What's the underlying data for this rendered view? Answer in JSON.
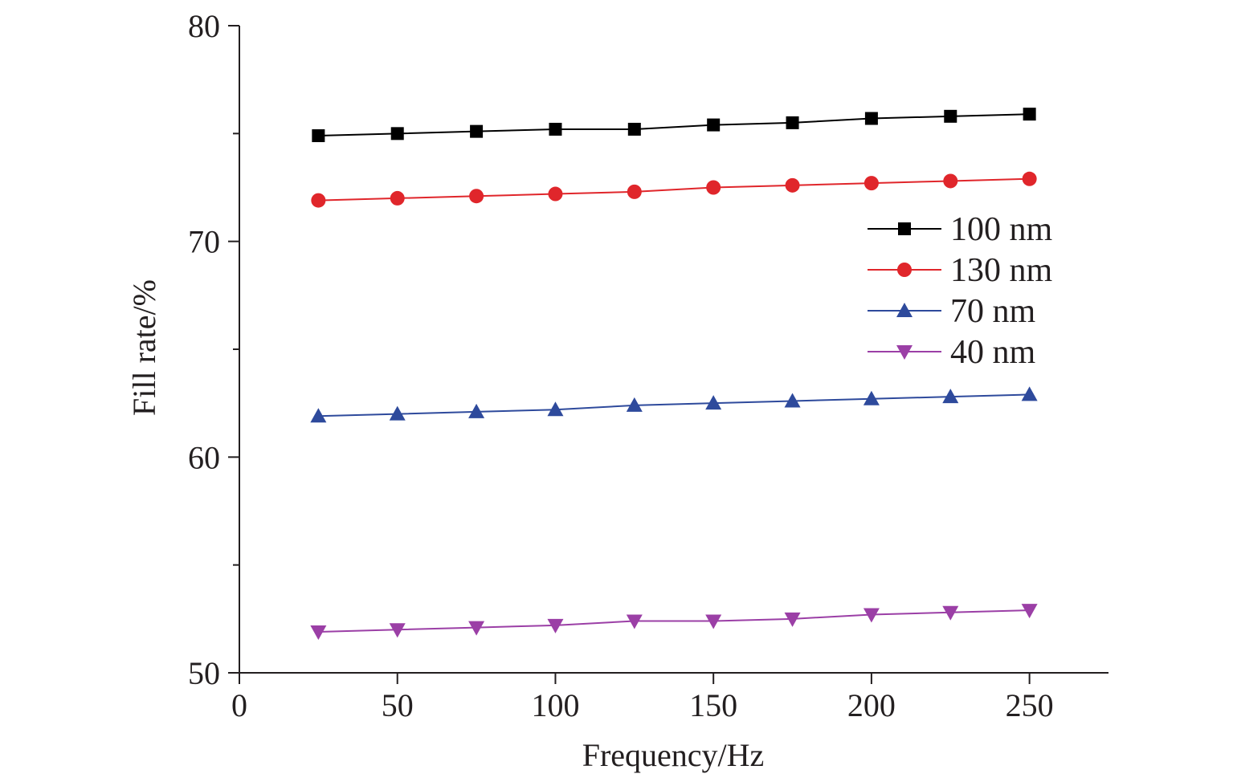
{
  "chart_data": {
    "type": "line",
    "xlabel": "Frequency/Hz",
    "ylabel": "Fill rate/%",
    "xlim": [
      0,
      275
    ],
    "ylim": [
      50,
      80
    ],
    "xticks": [
      0,
      50,
      100,
      150,
      200,
      250
    ],
    "yticks": [
      50,
      60,
      70,
      80
    ],
    "y_minor_ticks": [
      55,
      65,
      75
    ],
    "grid": false,
    "legend_position": "right",
    "x": [
      25,
      50,
      75,
      100,
      125,
      150,
      175,
      200,
      225,
      250
    ],
    "series": [
      {
        "name": "100 nm",
        "marker": "square",
        "color": "#000000",
        "values": [
          74.9,
          75.0,
          75.1,
          75.2,
          75.2,
          75.4,
          75.5,
          75.7,
          75.8,
          75.9
        ]
      },
      {
        "name": "130 nm",
        "marker": "circle",
        "color": "#e0262b",
        "values": [
          71.9,
          72.0,
          72.1,
          72.2,
          72.3,
          72.5,
          72.6,
          72.7,
          72.8,
          72.9
        ]
      },
      {
        "name": "70 nm",
        "marker": "triangle-up",
        "color": "#2e4a9c",
        "values": [
          61.9,
          62.0,
          62.1,
          62.2,
          62.4,
          62.5,
          62.6,
          62.7,
          62.8,
          62.9
        ]
      },
      {
        "name": "40 nm",
        "marker": "triangle-down",
        "color": "#9b3fa6",
        "values": [
          51.9,
          52.0,
          52.1,
          52.2,
          52.4,
          52.4,
          52.5,
          52.7,
          52.8,
          52.9
        ]
      }
    ]
  }
}
